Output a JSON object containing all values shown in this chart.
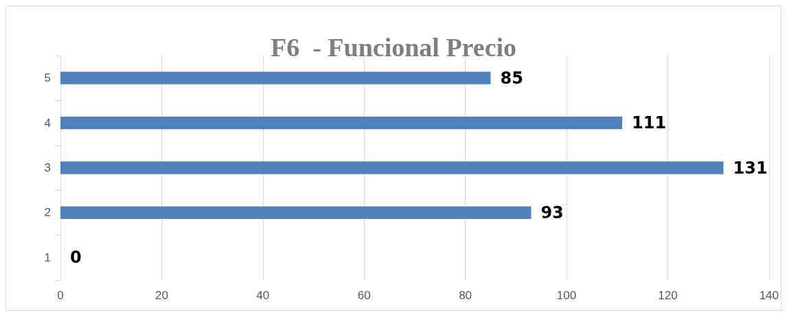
{
  "chart_data": {
    "type": "bar",
    "orientation": "horizontal",
    "title": "F6  - Funcional Precio",
    "categories": [
      "5",
      "4",
      "3",
      "2",
      "1"
    ],
    "values": [
      85,
      111,
      131,
      93,
      0
    ],
    "color": "#4f81bd",
    "xlim": [
      0,
      140
    ],
    "xticks": [
      0,
      20,
      40,
      60,
      80,
      100,
      120,
      140
    ],
    "grid": "x",
    "data_labels": true
  }
}
